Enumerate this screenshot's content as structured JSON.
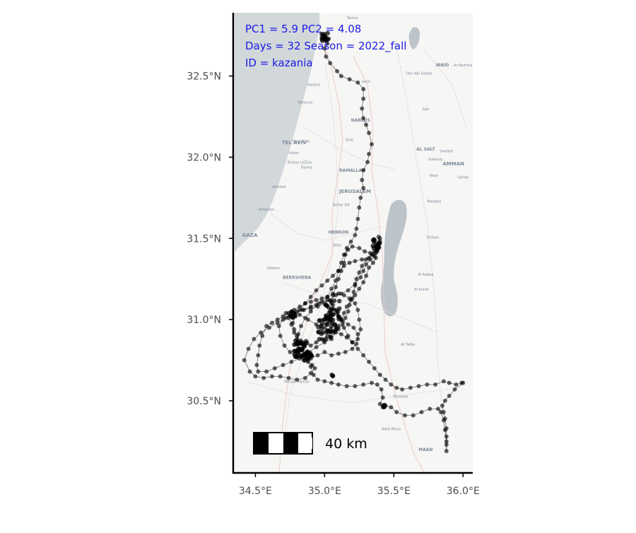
{
  "annotations": {
    "line1": "PC1 = 5.9  PC2 = 4.08",
    "line2": "Days = 32  Season = 2022_fall",
    "line3": "ID = kazania",
    "color": "#1a1ae6"
  },
  "scale_bar": {
    "label": "40 km"
  },
  "colors": {
    "track": "#000000",
    "sea": "#d2d7da",
    "land": "#f6f6f4",
    "lake": "#bcc4ca",
    "axis": "#000000"
  },
  "map_labels": [
    {
      "text": "TEL AVIV",
      "lon": 34.78,
      "lat": 32.08,
      "size": 7
    },
    {
      "text": "Holon",
      "lon": 34.78,
      "lat": 32.02,
      "size": 5
    },
    {
      "text": "Bnei Brak",
      "lon": 34.83,
      "lat": 32.09,
      "size": 5
    },
    {
      "text": "Rishon LeZion",
      "lon": 34.82,
      "lat": 31.96,
      "size": 5
    },
    {
      "text": "Ramla",
      "lon": 34.87,
      "lat": 31.93,
      "size": 5
    },
    {
      "text": "Ashdod",
      "lon": 34.67,
      "lat": 31.81,
      "size": 5
    },
    {
      "text": "Ashkelon",
      "lon": 34.58,
      "lat": 31.67,
      "size": 5
    },
    {
      "text": "GAZA",
      "lon": 34.46,
      "lat": 31.51,
      "size": 7
    },
    {
      "text": "Rafah",
      "lon": 34.25,
      "lat": 31.28,
      "size": 5
    },
    {
      "text": "Ofakim",
      "lon": 34.63,
      "lat": 31.31,
      "size": 5
    },
    {
      "text": "BEERSHEBA",
      "lon": 34.8,
      "lat": 31.25,
      "size": 6
    },
    {
      "text": "JERUSALEM",
      "lon": 35.22,
      "lat": 31.78,
      "size": 7
    },
    {
      "text": "RAMALLAH",
      "lon": 35.2,
      "lat": 31.91,
      "size": 6
    },
    {
      "text": "Beitar Illit",
      "lon": 35.12,
      "lat": 31.7,
      "size": 5
    },
    {
      "text": "HEBRON",
      "lon": 35.1,
      "lat": 31.53,
      "size": 6
    },
    {
      "text": "Yatta",
      "lon": 35.09,
      "lat": 31.45,
      "size": 5
    },
    {
      "text": "NABLUS",
      "lon": 35.26,
      "lat": 32.22,
      "size": 6
    },
    {
      "text": "Ariel",
      "lon": 35.18,
      "lat": 32.1,
      "size": 5
    },
    {
      "text": "Jenin",
      "lon": 35.3,
      "lat": 32.46,
      "size": 5
    },
    {
      "text": "Tamra",
      "lon": 35.2,
      "lat": 32.85,
      "size": 5
    },
    {
      "text": "Netanya",
      "lon": 34.86,
      "lat": 32.33,
      "size": 5
    },
    {
      "text": "Hadera",
      "lon": 34.92,
      "lat": 32.44,
      "size": 5
    },
    {
      "text": "IRBID",
      "lon": 35.85,
      "lat": 32.56,
      "size": 6
    },
    {
      "text": "Ar Ramtha",
      "lon": 36.0,
      "lat": 32.56,
      "size": 5
    },
    {
      "text": "Deir Abi Saeed",
      "lon": 35.68,
      "lat": 32.51,
      "size": 5
    },
    {
      "text": "Salt",
      "lon": 35.73,
      "lat": 32.29,
      "size": 5
    },
    {
      "text": "AL SALT",
      "lon": 35.73,
      "lat": 32.04,
      "size": 6
    },
    {
      "text": "Dabouq",
      "lon": 35.8,
      "lat": 31.98,
      "size": 5
    },
    {
      "text": "Sweileh",
      "lon": 35.88,
      "lat": 32.03,
      "size": 5
    },
    {
      "text": "AMMAN",
      "lon": 35.93,
      "lat": 31.95,
      "size": 7
    },
    {
      "text": "Sahab",
      "lon": 36.0,
      "lat": 31.87,
      "size": 5
    },
    {
      "text": "Naur",
      "lon": 35.79,
      "lat": 31.88,
      "size": 5
    },
    {
      "text": "Madaba",
      "lon": 35.79,
      "lat": 31.72,
      "size": 5
    },
    {
      "text": "Dhiban",
      "lon": 35.78,
      "lat": 31.5,
      "size": 5
    },
    {
      "text": "Al Rabba",
      "lon": 35.73,
      "lat": 31.27,
      "size": 5
    },
    {
      "text": "Al Karak",
      "lon": 35.7,
      "lat": 31.18,
      "size": 5
    },
    {
      "text": "At Tafila",
      "lon": 35.6,
      "lat": 30.84,
      "size": 5
    },
    {
      "text": "Mitzpe Ramon",
      "lon": 34.8,
      "lat": 30.61,
      "size": 5
    },
    {
      "text": "Shoubak",
      "lon": 35.55,
      "lat": 30.52,
      "size": 5
    },
    {
      "text": "Wadi Musa",
      "lon": 35.48,
      "lat": 30.32,
      "size": 5
    },
    {
      "text": "MAAN",
      "lon": 35.73,
      "lat": 30.19,
      "size": 6
    }
  ],
  "chart_data": {
    "type": "scatter",
    "x_ticks": [
      "34.5°E",
      "35.0°E",
      "35.5°E",
      "36.0°E"
    ],
    "x_tick_values": [
      34.5,
      35.0,
      35.5,
      36.0
    ],
    "y_ticks": [
      "30.5°N",
      "31.0°N",
      "31.5°N",
      "32.0°N",
      "32.5°N"
    ],
    "y_tick_values": [
      30.5,
      31.0,
      31.5,
      32.0,
      32.5
    ],
    "xlim": [
      34.35,
      36.07
    ],
    "ylim": [
      30.06,
      32.89
    ],
    "grid": false,
    "track": [
      [
        35.0,
        32.76
      ],
      [
        35.01,
        32.74
      ],
      [
        35.03,
        32.73
      ],
      [
        35.02,
        32.7
      ],
      [
        35.0,
        32.67
      ],
      [
        35.01,
        32.62
      ],
      [
        35.04,
        32.58
      ],
      [
        35.09,
        32.53
      ],
      [
        35.12,
        32.5
      ],
      [
        35.18,
        32.48
      ],
      [
        35.24,
        32.46
      ],
      [
        35.28,
        32.42
      ],
      [
        35.28,
        32.36
      ],
      [
        35.27,
        32.3
      ],
      [
        35.28,
        32.24
      ],
      [
        35.3,
        32.2
      ],
      [
        35.32,
        32.15
      ],
      [
        35.34,
        32.08
      ],
      [
        35.32,
        32.02
      ],
      [
        35.31,
        31.97
      ],
      [
        35.28,
        31.92
      ],
      [
        35.27,
        31.86
      ],
      [
        35.28,
        31.81
      ],
      [
        35.26,
        31.75
      ],
      [
        35.25,
        31.69
      ],
      [
        35.24,
        31.62
      ],
      [
        35.23,
        31.56
      ],
      [
        35.22,
        31.52
      ],
      [
        35.19,
        31.48
      ],
      [
        35.16,
        31.44
      ],
      [
        35.15,
        31.4
      ],
      [
        35.14,
        31.35
      ],
      [
        35.12,
        31.3
      ],
      [
        35.1,
        31.25
      ],
      [
        35.08,
        31.2
      ],
      [
        35.06,
        31.15
      ],
      [
        35.05,
        31.1
      ],
      [
        35.07,
        31.06
      ],
      [
        35.1,
        31.02
      ],
      [
        35.13,
        30.99
      ],
      [
        35.17,
        30.97
      ],
      [
        35.21,
        30.95
      ],
      [
        35.24,
        30.91
      ],
      [
        35.23,
        30.85
      ],
      [
        35.2,
        30.82
      ],
      [
        35.15,
        30.8
      ],
      [
        35.1,
        30.79
      ],
      [
        35.05,
        30.78
      ],
      [
        35.0,
        30.8
      ],
      [
        34.95,
        30.78
      ],
      [
        34.9,
        30.76
      ],
      [
        34.85,
        30.75
      ],
      [
        34.8,
        30.77
      ],
      [
        34.75,
        30.8
      ],
      [
        34.71,
        30.84
      ],
      [
        34.68,
        30.9
      ],
      [
        34.67,
        30.96
      ],
      [
        34.7,
        31.0
      ],
      [
        34.75,
        31.03
      ],
      [
        34.8,
        31.05
      ],
      [
        34.85,
        31.06
      ],
      [
        34.9,
        31.07
      ],
      [
        34.95,
        31.08
      ],
      [
        35.0,
        31.1
      ],
      [
        35.04,
        31.12
      ],
      [
        35.08,
        31.15
      ],
      [
        35.12,
        31.16
      ],
      [
        35.17,
        31.18
      ],
      [
        35.22,
        31.22
      ],
      [
        35.26,
        31.26
      ],
      [
        35.28,
        31.3
      ],
      [
        35.3,
        31.34
      ],
      [
        35.33,
        31.37
      ],
      [
        35.36,
        31.39
      ],
      [
        35.38,
        31.43
      ],
      [
        35.39,
        31.47
      ],
      [
        35.39,
        31.51
      ],
      [
        35.38,
        31.46
      ],
      [
        35.36,
        31.42
      ],
      [
        35.33,
        31.41
      ],
      [
        35.29,
        31.42
      ],
      [
        35.25,
        31.44
      ],
      [
        35.2,
        31.45
      ],
      [
        35.17,
        31.43
      ],
      [
        35.14,
        31.4
      ],
      [
        35.12,
        31.35
      ],
      [
        35.1,
        31.3
      ],
      [
        35.08,
        31.24
      ],
      [
        35.05,
        31.19
      ],
      [
        35.02,
        31.14
      ],
      [
        34.98,
        31.11
      ],
      [
        34.94,
        31.09
      ],
      [
        34.9,
        31.05
      ],
      [
        34.86,
        31.01
      ],
      [
        34.83,
        30.96
      ],
      [
        34.81,
        30.91
      ],
      [
        34.8,
        30.86
      ],
      [
        34.82,
        30.82
      ],
      [
        34.85,
        30.79
      ],
      [
        34.88,
        30.75
      ],
      [
        34.91,
        30.72
      ],
      [
        34.93,
        30.7
      ],
      [
        34.9,
        30.67
      ],
      [
        34.86,
        30.64
      ],
      [
        34.8,
        30.63
      ],
      [
        34.74,
        30.64
      ],
      [
        34.68,
        30.65
      ],
      [
        34.62,
        30.65
      ],
      [
        34.56,
        30.64
      ],
      [
        34.5,
        30.65
      ],
      [
        34.46,
        30.68
      ],
      [
        34.42,
        30.75
      ],
      [
        34.45,
        30.82
      ],
      [
        34.49,
        30.88
      ],
      [
        34.54,
        30.92
      ],
      [
        34.6,
        30.95
      ],
      [
        34.66,
        30.98
      ],
      [
        34.72,
        31.01
      ],
      [
        34.78,
        31.04
      ],
      [
        34.84,
        31.06
      ],
      [
        34.9,
        31.08
      ],
      [
        34.96,
        31.1
      ],
      [
        35.02,
        31.12
      ],
      [
        35.06,
        31.09
      ],
      [
        35.09,
        31.04
      ],
      [
        35.12,
        31.0
      ],
      [
        35.14,
        30.95
      ],
      [
        35.17,
        30.9
      ],
      [
        35.2,
        30.86
      ],
      [
        35.24,
        30.82
      ],
      [
        35.28,
        30.78
      ],
      [
        35.32,
        30.74
      ],
      [
        35.36,
        30.7
      ],
      [
        35.4,
        30.66
      ],
      [
        35.44,
        30.63
      ],
      [
        35.48,
        30.6
      ],
      [
        35.52,
        30.58
      ],
      [
        35.56,
        30.57
      ],
      [
        35.62,
        30.58
      ],
      [
        35.68,
        30.59
      ],
      [
        35.74,
        30.6
      ],
      [
        35.8,
        30.6
      ],
      [
        35.86,
        30.62
      ],
      [
        35.9,
        30.61
      ],
      [
        35.95,
        30.6
      ],
      [
        35.99,
        30.61
      ],
      [
        36.0,
        30.61
      ],
      [
        35.94,
        30.57
      ],
      [
        35.9,
        30.53
      ],
      [
        35.87,
        30.5
      ],
      [
        35.85,
        30.47
      ],
      [
        35.86,
        30.43
      ],
      [
        35.87,
        30.39
      ],
      [
        35.88,
        30.33
      ],
      [
        35.88,
        30.28
      ],
      [
        35.88,
        30.23
      ],
      [
        35.88,
        30.19
      ],
      [
        35.88,
        30.25
      ],
      [
        35.87,
        30.32
      ],
      [
        35.86,
        30.38
      ],
      [
        35.84,
        30.43
      ],
      [
        35.82,
        30.45
      ],
      [
        35.76,
        30.45
      ],
      [
        35.7,
        30.43
      ],
      [
        35.64,
        30.41
      ],
      [
        35.58,
        30.41
      ],
      [
        35.52,
        30.43
      ],
      [
        35.48,
        30.46
      ],
      [
        35.44,
        30.47
      ],
      [
        35.42,
        30.46
      ],
      [
        35.4,
        30.48
      ],
      [
        35.42,
        30.52
      ],
      [
        35.41,
        30.57
      ],
      [
        35.38,
        30.6
      ],
      [
        35.34,
        30.61
      ],
      [
        35.28,
        30.6
      ],
      [
        35.22,
        30.59
      ],
      [
        35.16,
        30.59
      ],
      [
        35.1,
        30.6
      ],
      [
        35.05,
        30.61
      ],
      [
        35.0,
        30.62
      ],
      [
        34.95,
        30.63
      ],
      [
        34.92,
        30.66
      ],
      [
        34.9,
        30.71
      ],
      [
        34.88,
        30.74
      ],
      [
        34.86,
        30.78
      ],
      [
        34.84,
        30.82
      ],
      [
        34.82,
        30.86
      ],
      [
        34.8,
        30.88
      ],
      [
        34.78,
        30.92
      ],
      [
        34.76,
        30.97
      ],
      [
        34.74,
        31.01
      ],
      [
        34.72,
        31.04
      ],
      [
        34.76,
        31.05
      ],
      [
        34.82,
        31.03
      ],
      [
        34.88,
        31.0
      ],
      [
        34.94,
        30.97
      ],
      [
        35.0,
        30.95
      ],
      [
        35.06,
        30.93
      ],
      [
        35.12,
        30.91
      ],
      [
        35.16,
        30.89
      ],
      [
        35.2,
        30.86
      ],
      [
        35.24,
        30.88
      ],
      [
        35.26,
        30.94
      ],
      [
        35.25,
        31.0
      ],
      [
        35.24,
        31.06
      ],
      [
        35.22,
        31.1
      ],
      [
        35.18,
        31.13
      ],
      [
        35.14,
        31.15
      ],
      [
        35.1,
        31.16
      ],
      [
        35.06,
        31.16
      ],
      [
        35.02,
        31.14
      ],
      [
        34.98,
        31.13
      ],
      [
        34.94,
        31.12
      ],
      [
        34.9,
        31.11
      ],
      [
        34.86,
        31.1
      ],
      [
        34.82,
        31.08
      ],
      [
        34.78,
        31.06
      ],
      [
        34.74,
        31.04
      ],
      [
        34.7,
        31.02
      ],
      [
        34.66,
        31.0
      ],
      [
        34.62,
        30.98
      ],
      [
        34.58,
        30.96
      ],
      [
        34.55,
        30.9
      ],
      [
        34.53,
        30.84
      ],
      [
        34.52,
        30.78
      ],
      [
        34.51,
        30.72
      ],
      [
        34.52,
        30.68
      ],
      [
        34.58,
        30.68
      ],
      [
        34.64,
        30.7
      ],
      [
        34.7,
        30.72
      ],
      [
        34.76,
        30.74
      ],
      [
        34.82,
        30.76
      ],
      [
        34.88,
        30.8
      ],
      [
        34.94,
        30.83
      ],
      [
        35.0,
        30.86
      ],
      [
        35.05,
        30.88
      ],
      [
        35.08,
        30.92
      ],
      [
        35.1,
        30.96
      ],
      [
        35.12,
        31.0
      ],
      [
        35.14,
        31.04
      ],
      [
        35.16,
        31.08
      ],
      [
        35.19,
        31.12
      ],
      [
        35.22,
        31.15
      ],
      [
        35.25,
        31.19
      ],
      [
        35.28,
        31.23
      ],
      [
        35.3,
        31.27
      ],
      [
        35.32,
        31.32
      ],
      [
        35.35,
        31.35
      ],
      [
        35.37,
        31.38
      ],
      [
        35.38,
        31.42
      ],
      [
        35.39,
        31.46
      ],
      [
        35.4,
        31.5
      ],
      [
        35.38,
        31.44
      ],
      [
        35.35,
        31.4
      ],
      [
        35.32,
        31.38
      ],
      [
        35.27,
        31.37
      ],
      [
        35.22,
        31.36
      ],
      [
        35.18,
        31.35
      ],
      [
        35.14,
        31.33
      ],
      [
        35.1,
        31.3
      ],
      [
        35.06,
        31.27
      ],
      [
        35.02,
        31.24
      ],
      [
        34.98,
        31.21
      ],
      [
        34.94,
        31.18
      ],
      [
        34.9,
        31.14
      ],
      [
        34.86,
        31.1
      ],
      [
        34.82,
        31.06
      ],
      [
        34.79,
        31.02
      ],
      [
        34.77,
        30.98
      ],
      [
        34.78,
        30.94
      ],
      [
        34.8,
        30.9
      ],
      [
        34.83,
        30.87
      ],
      [
        34.86,
        30.85
      ],
      [
        34.9,
        30.84
      ],
      [
        34.94,
        30.86
      ],
      [
        34.98,
        30.88
      ],
      [
        35.02,
        30.9
      ],
      [
        35.06,
        30.92
      ],
      [
        35.1,
        30.94
      ],
      [
        35.13,
        30.97
      ],
      [
        35.15,
        31.01
      ],
      [
        35.17,
        31.05
      ],
      [
        35.18,
        31.09
      ],
      [
        35.2,
        31.13
      ],
      [
        35.21,
        31.17
      ],
      [
        35.22,
        31.21
      ],
      [
        35.23,
        31.25
      ],
      [
        35.25,
        31.29
      ],
      [
        35.27,
        31.33
      ],
      [
        35.3,
        31.37
      ],
      [
        35.34,
        31.4
      ],
      [
        35.37,
        31.41
      ],
      [
        35.39,
        31.44
      ],
      [
        35.4,
        31.48
      ]
    ],
    "clusters": [
      {
        "lon": 35.0,
        "lat": 32.74,
        "count": 14,
        "spread": 0.025
      },
      {
        "lon": 35.38,
        "lat": 31.46,
        "count": 16,
        "spread": 0.035
      },
      {
        "lon": 34.83,
        "lat": 30.82,
        "count": 40,
        "spread": 0.05
      },
      {
        "lon": 35.02,
        "lat": 30.94,
        "count": 38,
        "spread": 0.07
      },
      {
        "lon": 35.06,
        "lat": 31.06,
        "count": 26,
        "spread": 0.06
      },
      {
        "lon": 34.88,
        "lat": 30.77,
        "count": 14,
        "spread": 0.03
      },
      {
        "lon": 34.77,
        "lat": 31.03,
        "count": 8,
        "spread": 0.02
      },
      {
        "lon": 35.43,
        "lat": 30.47,
        "count": 5,
        "spread": 0.012
      },
      {
        "lon": 35.06,
        "lat": 30.66,
        "count": 3,
        "spread": 0.008
      }
    ]
  }
}
